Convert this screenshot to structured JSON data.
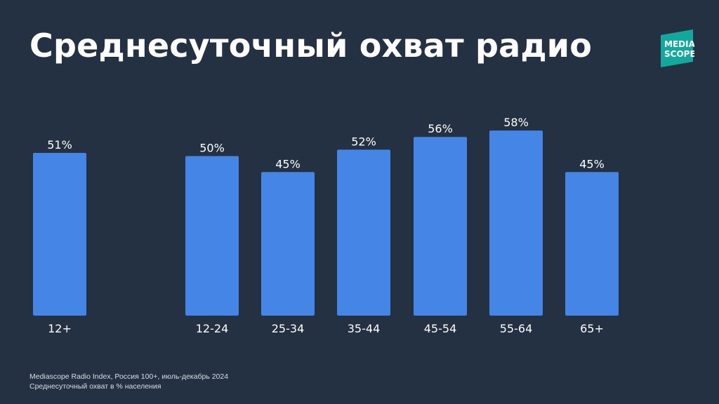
{
  "slide": {
    "title": "Среднесуточный охват радио",
    "logo": {
      "line1": "MEDIA",
      "line2": "SCOPE",
      "bg_color": "#13a89e"
    },
    "footnotes": [
      "Mediascope Radio Index, Россия 100+, июль-декабрь 2024",
      "Среднесуточный охват в % населения"
    ]
  },
  "chart_data": {
    "type": "bar",
    "title": "Среднесуточный охват радио",
    "categories": [
      "12+",
      "12-24",
      "25-34",
      "35-44",
      "45-54",
      "55-64",
      "65+"
    ],
    "values": [
      51,
      50,
      45,
      52,
      56,
      58,
      45
    ],
    "labels": [
      "51%",
      "50%",
      "45%",
      "52%",
      "56%",
      "58%",
      "45%"
    ],
    "unit": "%",
    "bar_color": "#4585e6",
    "ylim": [
      0,
      100
    ],
    "grid": false,
    "legend": false
  }
}
